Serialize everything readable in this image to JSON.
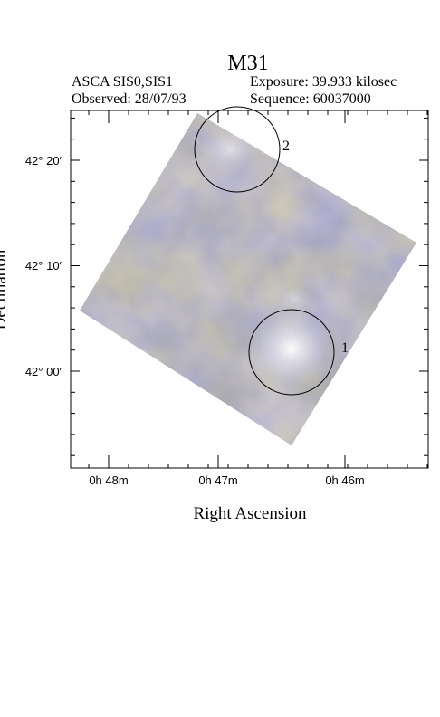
{
  "header": {
    "title": "M31",
    "instrument": "ASCA SIS0,SIS1",
    "exposure": "Exposure: 39.933 kilosec",
    "observed": "Observed: 28/07/93",
    "sequence": "Sequence: 60037000"
  },
  "axes": {
    "y_label": "Declination",
    "x_label": "Right Ascension",
    "y_ticks": [
      "42° 20′",
      "42° 10′",
      "42° 00′"
    ],
    "x_ticks": [
      "0h 48m",
      "0h 47m",
      "0h 46m"
    ]
  },
  "sources": [
    {
      "label": "1"
    },
    {
      "label": "2"
    }
  ]
}
